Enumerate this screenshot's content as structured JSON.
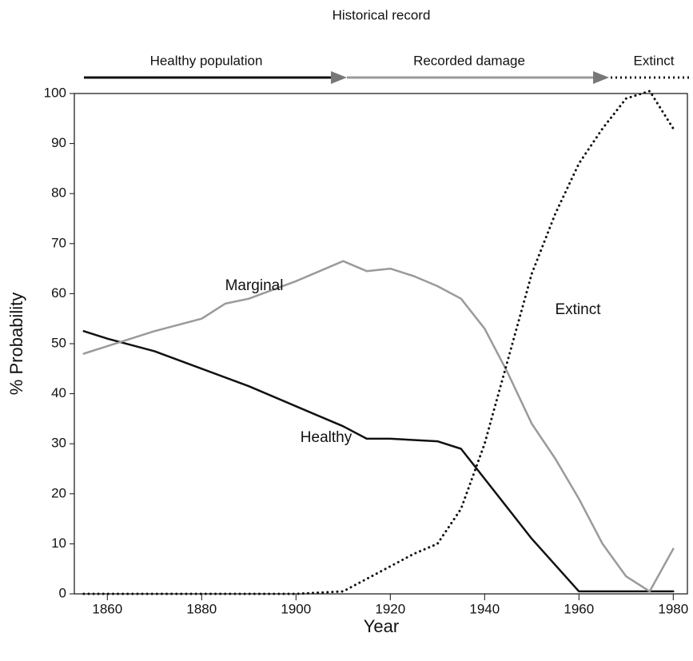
{
  "chart_data": {
    "type": "line",
    "title": "Historical record",
    "phases": [
      "Healthy population",
      "Recorded damage",
      "Extinct"
    ],
    "x_label": "Year",
    "y_label": "% Probability",
    "xlim": [
      1853,
      1983
    ],
    "xticks": [
      1860,
      1880,
      1900,
      1920,
      1940,
      1960,
      1980
    ],
    "ylim": [
      0,
      100
    ],
    "yticks": [
      0,
      10,
      20,
      30,
      40,
      50,
      60,
      70,
      80,
      90,
      100
    ],
    "grid": false,
    "series": [
      {
        "name": "Healthy",
        "color": "#111111",
        "style": "solid",
        "x": [
          1855,
          1860,
          1870,
          1880,
          1890,
          1900,
          1910,
          1915,
          1920,
          1930,
          1935,
          1940,
          1950,
          1960,
          1970,
          1980
        ],
        "values": [
          52.5,
          51,
          48.5,
          45,
          41.5,
          37.5,
          33.5,
          31,
          31,
          30.5,
          29,
          23,
          11,
          0.5,
          0.5,
          0.5
        ]
      },
      {
        "name": "Marginal",
        "color": "#9a9a9a",
        "style": "solid",
        "x": [
          1855,
          1860,
          1865,
          1870,
          1880,
          1885,
          1890,
          1900,
          1910,
          1915,
          1920,
          1925,
          1930,
          1935,
          1940,
          1945,
          1950,
          1955,
          1960,
          1965,
          1970,
          1975,
          1980
        ],
        "values": [
          48,
          49.5,
          51,
          52.5,
          55,
          58,
          59,
          62.5,
          66.5,
          64.5,
          65,
          63.5,
          61.5,
          59,
          53,
          44,
          34,
          27,
          19,
          10,
          3.5,
          0.5,
          9
        ]
      },
      {
        "name": "Extinct",
        "color": "#111111",
        "style": "dotted",
        "x": [
          1855,
          1900,
          1910,
          1920,
          1925,
          1930,
          1935,
          1940,
          1945,
          1950,
          1955,
          1960,
          1965,
          1970,
          1975,
          1980
        ],
        "values": [
          0,
          0,
          0.5,
          5.5,
          8,
          10,
          17,
          30,
          47,
          64,
          76,
          86,
          93,
          99,
          100.5,
          93
        ]
      }
    ]
  }
}
